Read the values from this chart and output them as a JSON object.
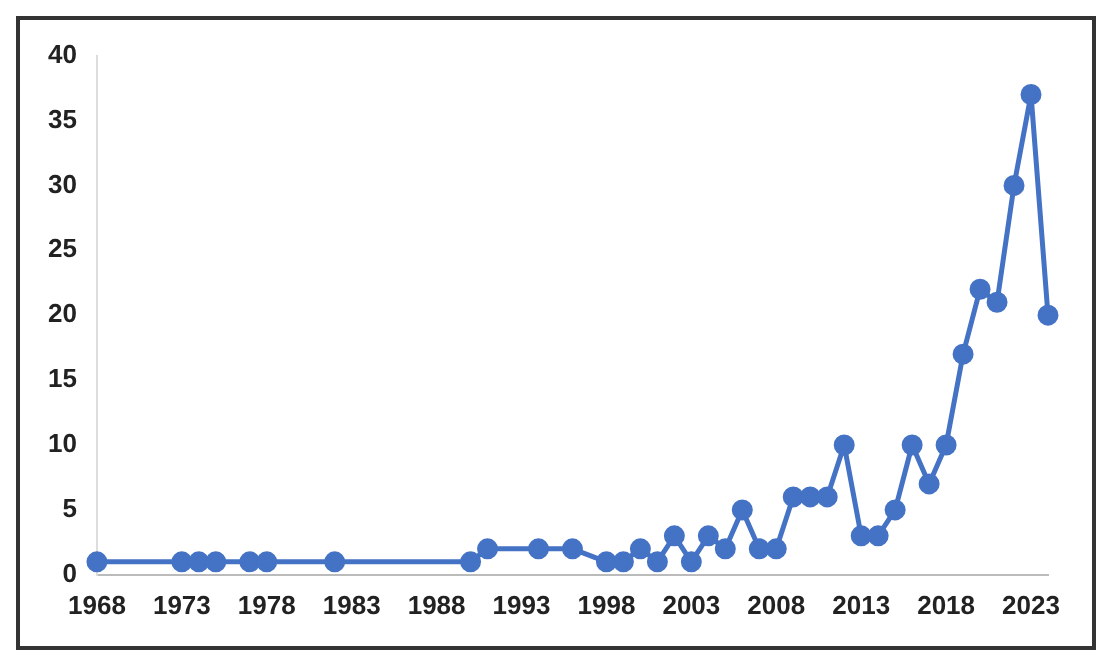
{
  "chart_data": {
    "type": "line",
    "x": [
      1968,
      1973,
      1974,
      1975,
      1977,
      1978,
      1982,
      1990,
      1991,
      1994,
      1996,
      1998,
      1999,
      2000,
      2001,
      2002,
      2003,
      2004,
      2005,
      2006,
      2007,
      2008,
      2009,
      2010,
      2011,
      2012,
      2013,
      2014,
      2015,
      2016,
      2017,
      2018,
      2019,
      2020,
      2021,
      2022,
      2023,
      2024
    ],
    "series": [
      {
        "color": "#4472c4",
        "values": [
          1,
          1,
          1,
          1,
          1,
          1,
          1,
          1,
          2,
          2,
          2,
          1,
          1,
          2,
          1,
          3,
          1,
          3,
          2,
          5,
          2,
          2,
          6,
          6,
          6,
          10,
          3,
          3,
          5,
          10,
          7,
          10,
          17,
          22,
          21,
          30,
          37,
          20
        ]
      }
    ],
    "xlim": [
      1968,
      2024
    ],
    "xticks": [
      1968,
      1973,
      1978,
      1983,
      1988,
      1993,
      1998,
      2003,
      2008,
      2013,
      2018,
      2023
    ],
    "ylim": [
      0,
      40
    ],
    "yticks": [
      0,
      5,
      10,
      15,
      20,
      25,
      30,
      35,
      40
    ],
    "grid": false,
    "legend": false,
    "marker": "circle",
    "line_style": "solid"
  }
}
